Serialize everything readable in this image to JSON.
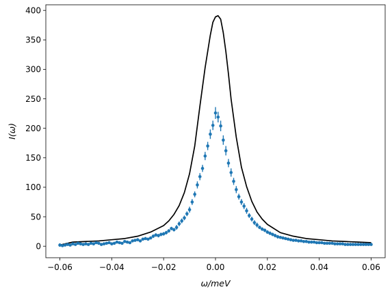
{
  "chart_data": {
    "type": "line",
    "xlabel": "ω/meV",
    "ylabel": "I(ω)",
    "xlim": [
      -0.0654,
      0.0654
    ],
    "ylim": [
      -19.5,
      409.5
    ],
    "x_ticks": [
      -0.06,
      -0.04,
      -0.02,
      0.0,
      0.02,
      0.04,
      0.06
    ],
    "x_tick_labels": [
      "−0.06",
      "−0.04",
      "−0.02",
      "0.00",
      "0.02",
      "0.04",
      "0.06"
    ],
    "y_ticks": [
      0,
      50,
      100,
      150,
      200,
      250,
      300,
      350,
      400
    ],
    "y_tick_labels": [
      "0",
      "50",
      "100",
      "150",
      "200",
      "250",
      "300",
      "350",
      "400"
    ],
    "grid": false,
    "colors": {
      "model": "#000000",
      "data": "#1f77b4"
    },
    "series": [
      {
        "kind": "line",
        "x": [
          -0.06,
          -0.055,
          -0.05,
          -0.045,
          -0.04,
          -0.035,
          -0.03,
          -0.025,
          -0.02,
          -0.018,
          -0.016,
          -0.014,
          -0.012,
          -0.01,
          -0.008,
          -0.006,
          -0.004,
          -0.002,
          -0.001,
          0.0,
          0.001,
          0.002,
          0.003,
          0.004,
          0.005,
          0.006,
          0.008,
          0.01,
          0.012,
          0.014,
          0.016,
          0.018,
          0.02,
          0.025,
          0.03,
          0.035,
          0.04,
          0.045,
          0.05,
          0.055,
          0.06
        ],
        "y": [
          2,
          7,
          8,
          9,
          11,
          13,
          17,
          24,
          35,
          43,
          54,
          69,
          91,
          123,
          170,
          238,
          303,
          358,
          380,
          389,
          391,
          385,
          362,
          330,
          292,
          250,
          185,
          134,
          101,
          76,
          58,
          46,
          37,
          23,
          17,
          13,
          11,
          9,
          8,
          7,
          6
        ]
      },
      {
        "kind": "errorbar",
        "x": [
          -0.06,
          -0.059,
          -0.058,
          -0.057,
          -0.056,
          -0.055,
          -0.054,
          -0.053,
          -0.052,
          -0.051,
          -0.05,
          -0.049,
          -0.048,
          -0.047,
          -0.046,
          -0.045,
          -0.044,
          -0.043,
          -0.042,
          -0.041,
          -0.04,
          -0.039,
          -0.038,
          -0.037,
          -0.036,
          -0.035,
          -0.034,
          -0.033,
          -0.032,
          -0.031,
          -0.03,
          -0.029,
          -0.028,
          -0.027,
          -0.026,
          -0.025,
          -0.024,
          -0.023,
          -0.022,
          -0.021,
          -0.02,
          -0.019,
          -0.018,
          -0.017,
          -0.016,
          -0.015,
          -0.014,
          -0.013,
          -0.012,
          -0.011,
          -0.01,
          -0.009,
          -0.008,
          -0.007,
          -0.006,
          -0.005,
          -0.004,
          -0.003,
          -0.002,
          -0.001,
          0.0,
          0.001,
          0.002,
          0.003,
          0.004,
          0.005,
          0.006,
          0.007,
          0.008,
          0.009,
          0.01,
          0.011,
          0.012,
          0.013,
          0.014,
          0.015,
          0.016,
          0.017,
          0.018,
          0.019,
          0.02,
          0.021,
          0.022,
          0.023,
          0.024,
          0.025,
          0.026,
          0.027,
          0.028,
          0.029,
          0.03,
          0.031,
          0.032,
          0.033,
          0.034,
          0.035,
          0.036,
          0.037,
          0.038,
          0.039,
          0.04,
          0.041,
          0.042,
          0.043,
          0.044,
          0.045,
          0.046,
          0.047,
          0.048,
          0.049,
          0.05,
          0.051,
          0.052,
          0.053,
          0.054,
          0.055,
          0.056,
          0.057,
          0.058,
          0.059,
          0.06
        ],
        "y": [
          2,
          1,
          2,
          3,
          2,
          4,
          3,
          5,
          4,
          3,
          4,
          3,
          5,
          4,
          6,
          5,
          3,
          4,
          5,
          6,
          4,
          5,
          7,
          6,
          5,
          8,
          7,
          6,
          9,
          10,
          11,
          9,
          12,
          13,
          12,
          14,
          17,
          19,
          18,
          20,
          21,
          23,
          26,
          30,
          28,
          32,
          38,
          43,
          48,
          55,
          62,
          75,
          88,
          104,
          118,
          132,
          153,
          170,
          190,
          205,
          226,
          219,
          204,
          180,
          162,
          141,
          125,
          110,
          96,
          84,
          75,
          68,
          60,
          52,
          46,
          40,
          36,
          32,
          29,
          27,
          24,
          22,
          20,
          18,
          16,
          15,
          14,
          13,
          12,
          11,
          10,
          10,
          9,
          9,
          8,
          8,
          7,
          7,
          7,
          6,
          6,
          6,
          5,
          5,
          5,
          5,
          4,
          4,
          4,
          4,
          3,
          3,
          3,
          3,
          3,
          3,
          3,
          3,
          3,
          3,
          3
        ],
        "yerr": [
          3,
          2,
          2,
          2,
          2,
          2,
          2,
          2,
          2,
          2,
          2,
          2,
          2,
          2,
          2,
          2,
          2,
          2,
          2,
          2,
          2,
          2,
          2,
          2,
          2,
          2,
          2,
          2,
          2,
          2,
          2,
          2,
          2,
          2,
          2,
          2,
          3,
          3,
          3,
          3,
          3,
          3,
          3,
          3,
          3,
          4,
          4,
          4,
          4,
          4,
          5,
          5,
          5,
          6,
          6,
          6,
          7,
          7,
          8,
          8,
          10,
          9,
          9,
          8,
          8,
          7,
          7,
          6,
          6,
          5,
          5,
          5,
          5,
          4,
          4,
          4,
          4,
          3,
          3,
          3,
          3,
          3,
          3,
          3,
          3,
          2,
          2,
          2,
          2,
          2,
          2,
          2,
          2,
          2,
          2,
          2,
          2,
          2,
          2,
          2,
          2,
          2,
          2,
          2,
          2,
          2,
          2,
          2,
          2,
          2,
          2,
          2,
          2,
          2,
          2,
          2,
          2,
          2,
          2,
          2,
          2
        ]
      }
    ]
  }
}
